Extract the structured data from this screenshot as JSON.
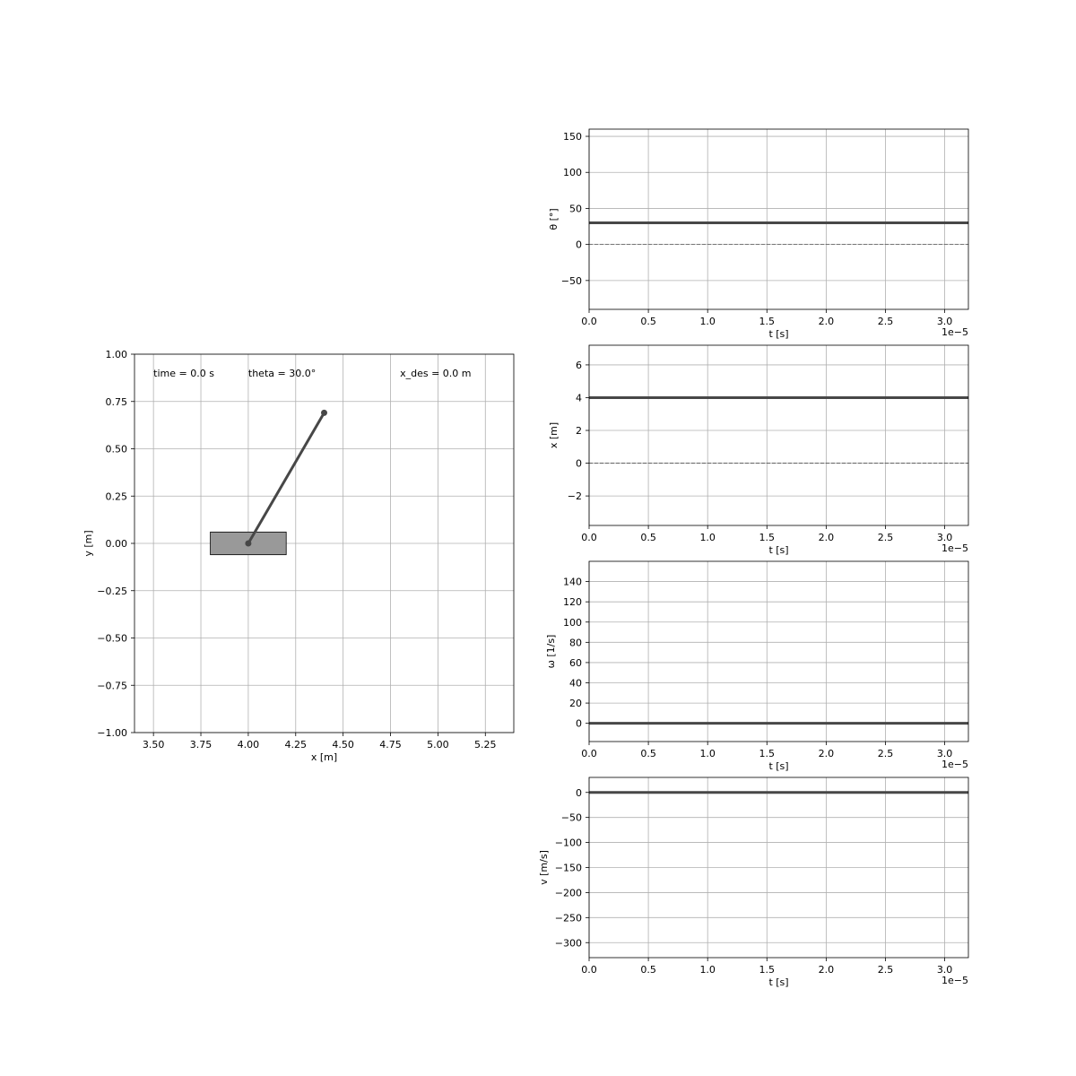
{
  "chart_data": [
    {
      "id": "cartpole",
      "type": "scatter",
      "title": "",
      "xlabel": "x [m]",
      "ylabel": "y [m]",
      "xlim": [
        3.4,
        5.4
      ],
      "ylim": [
        -1.0,
        1.0
      ],
      "xticks": [
        "3.50",
        "3.75",
        "4.00",
        "4.25",
        "4.50",
        "4.75",
        "5.00",
        "5.25"
      ],
      "xtick_values": [
        3.5,
        3.75,
        4.0,
        4.25,
        4.5,
        4.75,
        5.0,
        5.25
      ],
      "yticks": [
        "1.00",
        "0.75",
        "0.50",
        "0.25",
        "0.00",
        "−0.25",
        "−0.50",
        "−0.75",
        "−1.00"
      ],
      "ytick_values": [
        1.0,
        0.75,
        0.5,
        0.25,
        0.0,
        -0.25,
        -0.5,
        -0.75,
        -1.0
      ],
      "grid": true,
      "cart": {
        "x_min": 3.8,
        "x_max": 4.2,
        "y_min": -0.06,
        "y_max": 0.06,
        "color": "#999999"
      },
      "pole": {
        "x": [
          4.0,
          4.4
        ],
        "y": [
          0.0,
          0.69
        ],
        "color": "#474747"
      },
      "annotations": [
        {
          "id": "time",
          "text": "time = 0.0 s",
          "x": 3.5,
          "y": 0.9
        },
        {
          "id": "theta",
          "text": "theta = 30.0°",
          "x": 4.0,
          "y": 0.9
        },
        {
          "id": "xdes",
          "text": "x_des = 0.0 m",
          "x": 4.8,
          "y": 0.9
        }
      ]
    },
    {
      "id": "theta",
      "type": "line",
      "xlabel": "t [s]",
      "ylabel": "θ [°]",
      "x_offset_label": "1e−5",
      "xlim": [
        0.0,
        3.2
      ],
      "ylim": [
        -90,
        160
      ],
      "xticks": [
        "0.0",
        "0.5",
        "1.0",
        "1.5",
        "2.0",
        "2.5",
        "3.0"
      ],
      "xtick_values": [
        0.0,
        0.5,
        1.0,
        1.5,
        2.0,
        2.5,
        3.0
      ],
      "yticks": [
        "150",
        "100",
        "50",
        "0",
        "−50"
      ],
      "ytick_values": [
        150,
        100,
        50,
        0,
        -50
      ],
      "grid": true,
      "zero_line": true,
      "series": [
        {
          "x": [
            0.0,
            3.2
          ],
          "y": [
            30,
            30
          ],
          "color": "#474747"
        }
      ]
    },
    {
      "id": "position",
      "type": "line",
      "xlabel": "t [s]",
      "ylabel": "x [m]",
      "x_offset_label": "1e−5",
      "xlim": [
        0.0,
        3.2
      ],
      "ylim": [
        -3.8,
        7.2
      ],
      "xticks": [
        "0.0",
        "0.5",
        "1.0",
        "1.5",
        "2.0",
        "2.5",
        "3.0"
      ],
      "xtick_values": [
        0.0,
        0.5,
        1.0,
        1.5,
        2.0,
        2.5,
        3.0
      ],
      "yticks": [
        "6",
        "4",
        "2",
        "0",
        "−2"
      ],
      "ytick_values": [
        6,
        4,
        2,
        0,
        -2
      ],
      "grid": true,
      "zero_line": true,
      "series": [
        {
          "x": [
            0.0,
            3.2
          ],
          "y": [
            4,
            4
          ],
          "color": "#474747"
        }
      ]
    },
    {
      "id": "omega",
      "type": "line",
      "xlabel": "t [s]",
      "ylabel": "ω [1/s]",
      "x_offset_label": "1e−5",
      "xlim": [
        0.0,
        3.2
      ],
      "ylim": [
        -18,
        160
      ],
      "xticks": [
        "0.0",
        "0.5",
        "1.0",
        "1.5",
        "2.0",
        "2.5",
        "3.0"
      ],
      "xtick_values": [
        0.0,
        0.5,
        1.0,
        1.5,
        2.0,
        2.5,
        3.0
      ],
      "yticks": [
        "140",
        "120",
        "100",
        "80",
        "60",
        "40",
        "20",
        "0"
      ],
      "ytick_values": [
        140,
        120,
        100,
        80,
        60,
        40,
        20,
        0
      ],
      "grid": true,
      "zero_line": false,
      "series": [
        {
          "x": [
            0.0,
            3.2
          ],
          "y": [
            0,
            0
          ],
          "color": "#474747"
        }
      ]
    },
    {
      "id": "velocity",
      "type": "line",
      "xlabel": "t [s]",
      "ylabel": "v [m/s]",
      "x_offset_label": "1e−5",
      "xlim": [
        0.0,
        3.2
      ],
      "ylim": [
        -330,
        30
      ],
      "xticks": [
        "0.0",
        "0.5",
        "1.0",
        "1.5",
        "2.0",
        "2.5",
        "3.0"
      ],
      "xtick_values": [
        0.0,
        0.5,
        1.0,
        1.5,
        2.0,
        2.5,
        3.0
      ],
      "yticks": [
        "0",
        "−50",
        "−100",
        "−150",
        "−200",
        "−250",
        "−300"
      ],
      "ytick_values": [
        0,
        -50,
        -100,
        -150,
        -200,
        -250,
        -300
      ],
      "grid": true,
      "zero_line": false,
      "series": [
        {
          "x": [
            0.0,
            3.2
          ],
          "y": [
            0,
            0
          ],
          "color": "#474747"
        }
      ]
    }
  ]
}
